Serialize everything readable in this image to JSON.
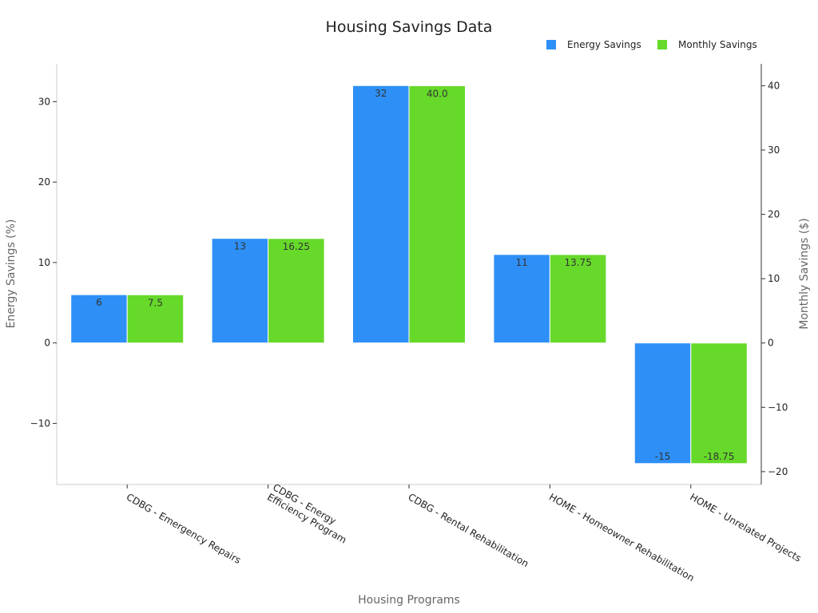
{
  "chart_data": {
    "type": "bar",
    "title": "Housing Savings Data",
    "xlabel": "Housing Programs",
    "ylabel": "Energy Savings (%)",
    "y2label": "Monthly Savings ($)",
    "categories": [
      "CDBG - Emergency Repairs",
      "CDBG - Energy Efficiency Program",
      "CDBG - Rental Rehabilitation",
      "HOME - Homeowner Rehabilitation",
      "HOME - Unrelated Projects"
    ],
    "category_lines": [
      [
        "CDBG - Emergency Repairs"
      ],
      [
        "CDBG - Energy",
        "Efficiency Program"
      ],
      [
        "CDBG - Rental Rehabilitation"
      ],
      [
        "HOME - Homeowner Rehabilitation"
      ],
      [
        "HOME - Unrelated Projects"
      ]
    ],
    "series": [
      {
        "name": "Energy Savings",
        "axis": "left",
        "color": "#2e90f7",
        "values": [
          6,
          13,
          32,
          11,
          -15
        ],
        "labels": [
          "6",
          "13",
          "32",
          "11",
          "-15"
        ]
      },
      {
        "name": "Monthly Savings",
        "axis": "right",
        "color": "#66d92a",
        "values": [
          7.5,
          16.25,
          40.0,
          13.75,
          -18.75
        ],
        "labels": [
          "7.5",
          "16.25",
          "40.0",
          "13.75",
          "-18.75"
        ]
      }
    ],
    "ylim": [
      -17.6,
      34.7
    ],
    "y2lim": [
      -22,
      43.4
    ],
    "yticks": [
      -10,
      0,
      10,
      20,
      30
    ],
    "yticklabels": [
      "−10",
      "0",
      "10",
      "20",
      "30"
    ],
    "y2ticks": [
      -20,
      -10,
      0,
      10,
      20,
      30,
      40
    ],
    "y2ticklabels": [
      "−20",
      "−10",
      "0",
      "10",
      "20",
      "30",
      "40"
    ],
    "legend_position": "top-right",
    "grid": false
  }
}
